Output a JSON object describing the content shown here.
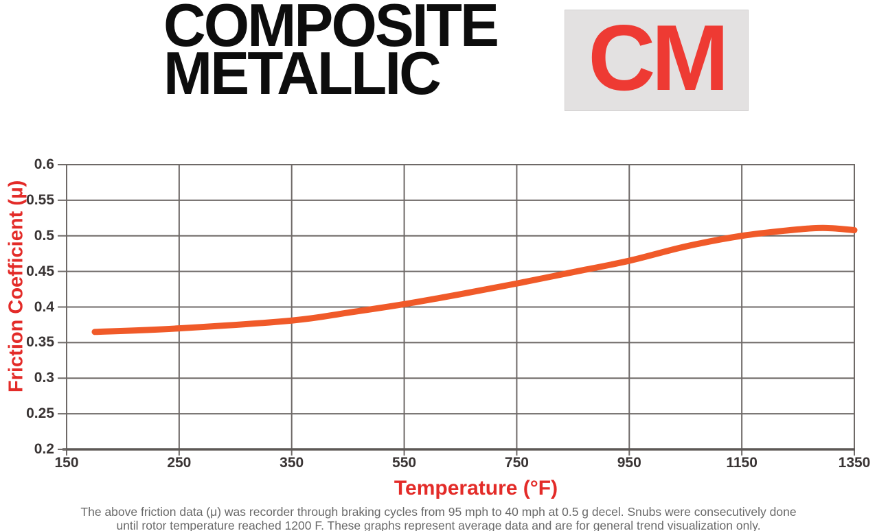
{
  "header": {
    "title_line1": "COMPOSITE",
    "title_line2": "METALLIC",
    "badge_label": "CM"
  },
  "chart_data": {
    "type": "line",
    "title": "Composite Metallic (CM) friction vs temperature",
    "xlabel": "Temperature (°F)",
    "ylabel": "Friction Coefficient (μ)",
    "x_tick_labels": [
      "150",
      "250",
      "350",
      "550",
      "750",
      "950",
      "1150",
      "1350"
    ],
    "x_tick_values": [
      150,
      250,
      350,
      550,
      750,
      950,
      1150,
      1350
    ],
    "y_tick_labels": [
      "0.6",
      "0.55",
      "0.5",
      "0.45",
      "0.4",
      "0.35",
      "0.3",
      "0.25",
      "0.2"
    ],
    "y_tick_values": [
      0.6,
      0.55,
      0.5,
      0.45,
      0.4,
      0.35,
      0.3,
      0.25,
      0.2
    ],
    "ylim": [
      0.2,
      0.6
    ],
    "grid": true,
    "legend_position": "none",
    "series": [
      {
        "name": "CM friction coefficient",
        "color": "#f05a29",
        "points_temp_f_mu": [
          [
            175,
            0.365
          ],
          [
            250,
            0.37
          ],
          [
            350,
            0.381
          ],
          [
            450,
            0.392
          ],
          [
            550,
            0.404
          ],
          [
            650,
            0.418
          ],
          [
            750,
            0.433
          ],
          [
            850,
            0.449
          ],
          [
            950,
            0.465
          ],
          [
            1050,
            0.485
          ],
          [
            1150,
            0.5
          ],
          [
            1250,
            0.509
          ],
          [
            1300,
            0.511
          ],
          [
            1350,
            0.508
          ]
        ]
      }
    ]
  },
  "footnote": {
    "line1": "The above friction data (μ) was recorder through braking cycles from 95 mph to 40 mph at 0.5 g decel. Snubs were consecutively done",
    "line2": "until rotor temperature reached 1200 F. These graphs represent average data and are for general trend visualization only."
  },
  "colors": {
    "title_black": "#0d0d0d",
    "accent_red": "#e32b28",
    "badge_red": "#ee3a33",
    "badge_bg": "#e3e1e1",
    "curve_orange": "#f05a29",
    "grid_gray": "#6e6967",
    "axis_dark_gray": "#5d5856",
    "tick_text": "#393434",
    "footnote_gray": "#696969"
  }
}
